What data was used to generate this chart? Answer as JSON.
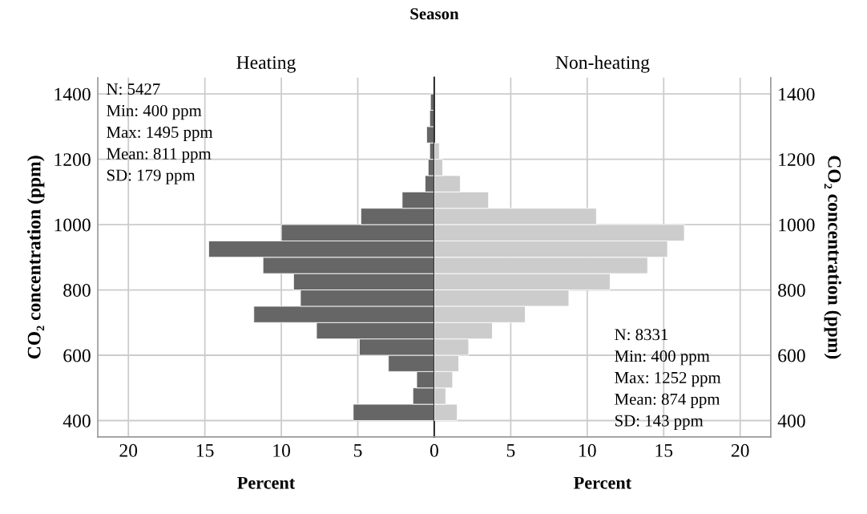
{
  "chart_data": [
    {
      "type": "histogram",
      "orientation": "horizontal",
      "title": "Heating",
      "xlabel": "Percent",
      "ylabel": "CO₂ concentration (ppm)",
      "bins": [
        400,
        450,
        500,
        550,
        600,
        650,
        700,
        750,
        800,
        850,
        900,
        950,
        1000,
        1050,
        1100,
        1150,
        1200,
        1250,
        1300,
        1350,
        1400
      ],
      "values": [
        5.3,
        1.4,
        1.15,
        3.0,
        4.9,
        7.7,
        11.8,
        8.75,
        9.2,
        11.2,
        14.75,
        10.0,
        4.8,
        2.1,
        0.6,
        0.4,
        0.3,
        0.5,
        0.3,
        0.25
      ],
      "color": "#666666",
      "xlim": [
        22,
        0
      ],
      "xticks": [
        20,
        15,
        10,
        5,
        0
      ],
      "ylim": [
        350,
        1450
      ],
      "yticks": [
        400,
        600,
        800,
        1000,
        1200,
        1400
      ],
      "grid": true,
      "annotations": [
        "Season",
        "N: 5427\nMin: 400 ppm\nMax: 1495 ppm\nMean: 811 ppm\nSD: 179 ppm"
      ]
    },
    {
      "type": "histogram",
      "orientation": "horizontal",
      "title": "Non-heating",
      "xlabel": "Percent",
      "ylabel": "CO₂ concentration (ppm)",
      "bins": [
        400,
        450,
        500,
        550,
        600,
        650,
        700,
        750,
        800,
        850,
        900,
        950,
        1000,
        1050,
        1100,
        1150,
        1200,
        1250,
        1300,
        1350,
        1400
      ],
      "values": [
        1.5,
        0.75,
        1.2,
        1.6,
        2.25,
        3.8,
        5.95,
        8.8,
        11.5,
        13.95,
        15.25,
        16.35,
        10.6,
        3.55,
        1.7,
        0.55,
        0.33,
        0,
        0,
        0
      ],
      "color": "#cccccc",
      "xlim": [
        0,
        22
      ],
      "xticks": [
        {
          "value": 0,
          "label": null
        },
        5,
        10,
        15,
        20
      ],
      "ylim": [
        350,
        1450
      ],
      "yticks": [
        400,
        600,
        800,
        1000,
        1200,
        1400
      ],
      "grid": true,
      "annotations": [
        "N: 8331\nMin: 400 ppm\nMax: 1252 ppm\nMean: 874 ppm\nSD: 143 ppm"
      ]
    }
  ]
}
